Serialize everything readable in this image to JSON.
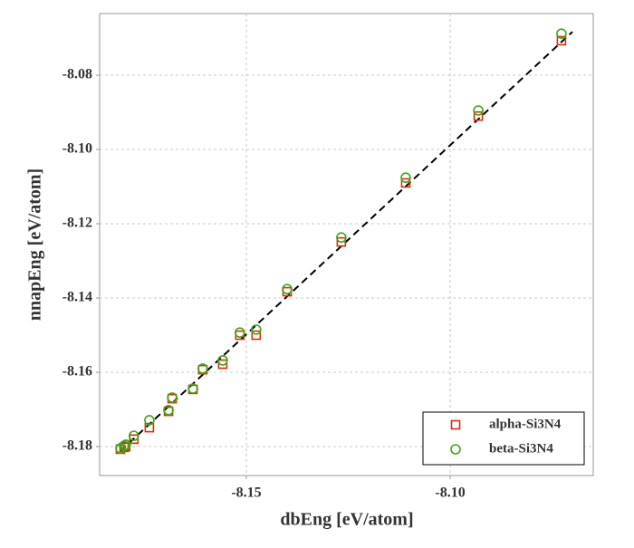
{
  "chart_data": {
    "type": "scatter",
    "x_label": "dbEng [eV/atom]",
    "y_label": "nnapEng [eV/atom]",
    "xlim": [
      -8.186,
      -8.0649
    ],
    "ylim": [
      -8.1878,
      -8.0634
    ],
    "xticks": [
      -8.15,
      {
        "value": -8.1,
        "label": "-8.10"
      }
    ],
    "yticks": [
      -8.18,
      -8.16,
      -8.14,
      -8.12,
      {
        "value": -8.1,
        "label": "-8.10"
      },
      -8.08
    ],
    "grid": true,
    "legend": "lower right",
    "series": [
      {
        "name": "alpha-Si3N4",
        "color": "#dd2a10",
        "marker": "square",
        "x": [
          -8.1809,
          -8.18,
          -8.1796,
          -8.1776,
          -8.1738,
          -8.1691,
          -8.1682,
          -8.1631,
          -8.1607,
          -8.1558,
          -8.1516,
          -8.1476,
          -8.14,
          -8.1267,
          -8.1109,
          -8.0931,
          -8.0727
        ],
        "values": [
          -8.1807,
          -8.1802,
          -8.18,
          -8.178,
          -8.1749,
          -8.1705,
          -8.1671,
          -8.1646,
          -8.1593,
          -8.1578,
          -8.15,
          -8.15,
          -8.1383,
          -8.1249,
          -8.109,
          -8.091,
          -8.0707
        ]
      },
      {
        "name": "beta-Si3N4",
        "color": "#3aaa10",
        "marker": "circle",
        "x": [
          -8.1809,
          -8.18,
          -8.1796,
          -8.1776,
          -8.1738,
          -8.1691,
          -8.1682,
          -8.1631,
          -8.1607,
          -8.1558,
          -8.1516,
          -8.1476,
          -8.14,
          -8.1267,
          -8.1109,
          -8.0931,
          -8.0727
        ],
        "values": [
          -8.1805,
          -8.1798,
          -8.1795,
          -8.1771,
          -8.1729,
          -8.1702,
          -8.1668,
          -8.1644,
          -8.159,
          -8.1568,
          -8.1493,
          -8.1485,
          -8.1376,
          -8.1237,
          -8.1076,
          -8.0895,
          -8.0688
        ]
      }
    ],
    "reference_line": {
      "x": [
        -8.1809,
        -8.07
      ],
      "values": [
        -8.1812,
        -8.0683
      ],
      "color": "#000000"
    }
  }
}
